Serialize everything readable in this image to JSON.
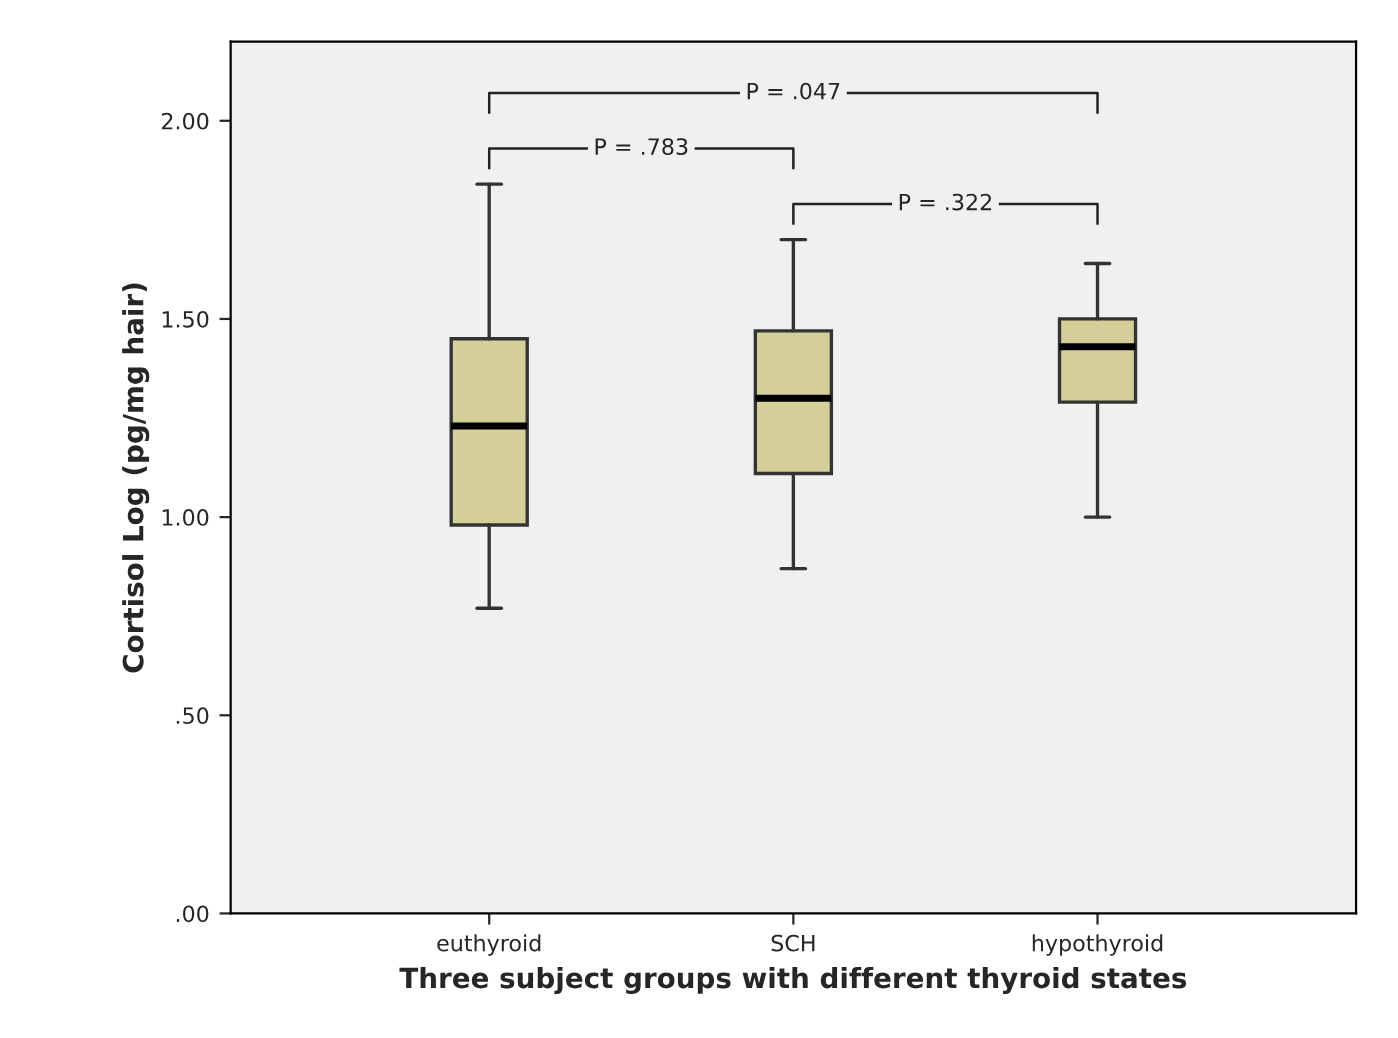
{
  "chart_data": {
    "type": "box",
    "xlabel": "Three subject groups with different thyroid states",
    "ylabel": "Cortisol Log (pg/mg hair)",
    "categories": [
      "euthyroid",
      "SCH",
      "hypothyroid"
    ],
    "boxes": [
      {
        "low": 0.77,
        "q1": 0.98,
        "median": 1.23,
        "q3": 1.45,
        "high": 1.84
      },
      {
        "low": 0.87,
        "q1": 1.11,
        "median": 1.3,
        "q3": 1.47,
        "high": 1.7
      },
      {
        "low": 1.0,
        "q1": 1.29,
        "median": 1.43,
        "q3": 1.5,
        "high": 1.64
      }
    ],
    "color": "#d4cf99",
    "ylim": [
      0,
      2.2
    ],
    "yticks": [
      {
        "value": 0,
        "label": ".00"
      },
      {
        "value": 0.5,
        "label": ".50"
      },
      {
        "value": 1.0,
        "label": "1.00"
      },
      {
        "value": 1.5,
        "label": "1.50"
      },
      {
        "value": 2.0,
        "label": "2.00"
      }
    ],
    "grid": false,
    "annotations": [
      "P = .047",
      "P = .783",
      "P = .322"
    ]
  }
}
